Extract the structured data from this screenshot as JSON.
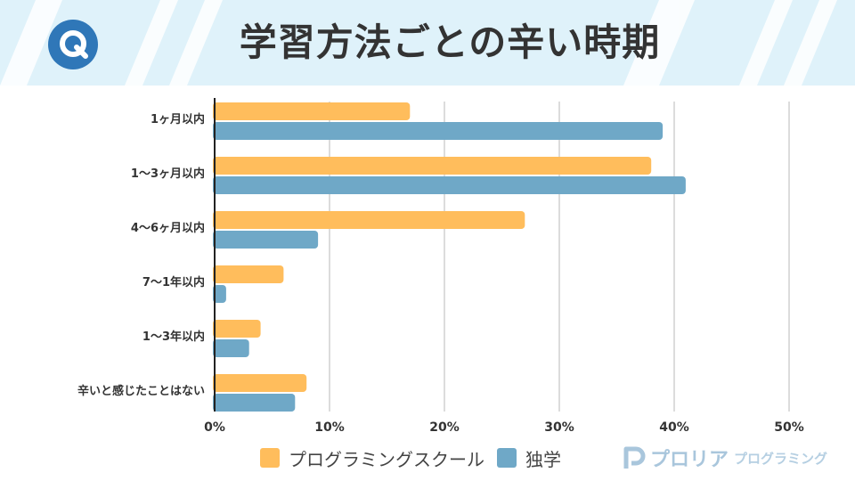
{
  "header": {
    "title": "学習方法ごとの辛い時期",
    "logo_letter": "Q"
  },
  "colors": {
    "header_bg": "#dff2fa",
    "stripe": "#ffffff",
    "logo_blue": "#2f77b8",
    "school": "#ffbd5c",
    "self": "#6fa8c7",
    "grid": "#d0d0d0"
  },
  "chart_data": {
    "type": "bar",
    "orientation": "horizontal",
    "categories": [
      "1ヶ月以内",
      "1～3ヶ月以内",
      "4～6ヶ月以内",
      "7～1年以内",
      "1～3年以内",
      "辛いと感じたことはない"
    ],
    "series": [
      {
        "name": "プログラミングスクール",
        "values": [
          17,
          38,
          27,
          6,
          4,
          8
        ]
      },
      {
        "name": "独学",
        "values": [
          39,
          41,
          9,
          1,
          3,
          7
        ]
      }
    ],
    "xlim": [
      0,
      50
    ],
    "xticks": [
      "0%",
      "10%",
      "20%",
      "30%",
      "40%",
      "50%"
    ],
    "xtick_values": [
      0,
      10,
      20,
      30,
      40,
      50
    ],
    "grid": true,
    "legend_position": "bottom"
  },
  "brand": {
    "name": "プロリア",
    "sub": "プログラミング"
  }
}
